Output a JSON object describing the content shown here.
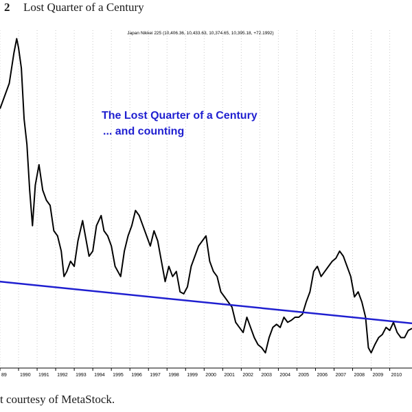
{
  "figure": {
    "number": "2",
    "title": "Lost Quarter of a Century",
    "caption": "t courtesy of MetaStock."
  },
  "chart_data": {
    "type": "line",
    "title": "Japan Nikkei 225 (10,406.36, 10,433.63, 10,374.65, 10,395.18, +72.1992)",
    "annotation": [
      "The Lost Quarter of a Century",
      "... and counting"
    ],
    "annotation_color": "#1f1fd0",
    "line_color": "#000000",
    "trendline_color": "#1f1fd0",
    "xlabel": "",
    "ylabel": "",
    "x_ticks": [
      "89",
      "1990",
      "1991",
      "1992",
      "1993",
      "1994",
      "1995",
      "1996",
      "1997",
      "1998",
      "1999",
      "2000",
      "2001",
      "2002",
      "2003",
      "2004",
      "2005",
      "2006",
      "2007",
      "2008",
      "2009",
      "2010"
    ],
    "xlim": [
      1989.0,
      2011.2
    ],
    "ylim": [
      6500,
      40000
    ],
    "grid": "vertical dotted",
    "series": [
      {
        "x": [
          1989.0,
          1989.2,
          1989.5,
          1989.75,
          1989.9,
          1990.0,
          1990.15,
          1990.3,
          1990.45,
          1990.6,
          1990.75,
          1990.9,
          1991.1,
          1991.3,
          1991.5,
          1991.7,
          1991.9,
          1992.1,
          1992.3,
          1992.45,
          1992.6,
          1992.8,
          1993.0,
          1993.2,
          1993.45,
          1993.6,
          1993.8,
          1994.0,
          1994.2,
          1994.45,
          1994.6,
          1994.8,
          1995.0,
          1995.2,
          1995.5,
          1995.7,
          1995.9,
          1996.1,
          1996.3,
          1996.5,
          1996.7,
          1996.9,
          1997.1,
          1997.3,
          1997.5,
          1997.7,
          1997.9,
          1998.1,
          1998.3,
          1998.5,
          1998.7,
          1998.9,
          1999.1,
          1999.3,
          1999.5,
          1999.7,
          1999.9,
          2000.1,
          2000.3,
          2000.5,
          2000.7,
          2000.9,
          2001.1,
          2001.3,
          2001.5,
          2001.7,
          2001.9,
          2002.1,
          2002.3,
          2002.5,
          2002.7,
          2002.9,
          2003.1,
          2003.3,
          2003.5,
          2003.7,
          2003.9,
          2004.1,
          2004.3,
          2004.5,
          2004.7,
          2004.9,
          2005.1,
          2005.3,
          2005.5,
          2005.7,
          2005.9,
          2006.1,
          2006.3,
          2006.5,
          2006.7,
          2006.9,
          2007.1,
          2007.3,
          2007.5,
          2007.7,
          2007.9,
          2008.1,
          2008.3,
          2008.5,
          2008.7,
          2008.85,
          2009.0,
          2009.2,
          2009.4,
          2009.6,
          2009.8,
          2010.0,
          2010.2,
          2010.4,
          2010.6,
          2010.8,
          2011.0,
          2011.2
        ],
        "y": [
          32000,
          33000,
          34500,
          37500,
          38900,
          38000,
          36000,
          31000,
          28500,
          24000,
          20500,
          24500,
          26500,
          24000,
          23000,
          22500,
          20000,
          19500,
          18000,
          15500,
          16000,
          17000,
          16500,
          19000,
          21000,
          19500,
          17500,
          18000,
          20500,
          21500,
          20000,
          19500,
          18500,
          16500,
          15500,
          18000,
          19500,
          20500,
          22000,
          21500,
          20500,
          19500,
          18500,
          20000,
          19000,
          17000,
          15000,
          16500,
          15500,
          16000,
          14000,
          13800,
          14500,
          16500,
          17500,
          18500,
          19000,
          19500,
          17000,
          16000,
          15500,
          14000,
          13500,
          13000,
          12500,
          11000,
          10500,
          10000,
          11500,
          10500,
          9500,
          8800,
          8500,
          8000,
          9500,
          10500,
          10800,
          10500,
          11500,
          11000,
          11200,
          11500,
          11500,
          11800,
          13000,
          14000,
          16000,
          16500,
          15500,
          16000,
          16500,
          17000,
          17300,
          18000,
          17500,
          16500,
          15500,
          13500,
          14000,
          13000,
          11500,
          8500,
          8000,
          8800,
          9500,
          9800,
          10500,
          10200,
          11000,
          10000,
          9500,
          9500,
          10200,
          10400
        ]
      },
      {
        "name": "",
        "x": [
          1989.0,
          2011.2
        ],
        "y": [
          15000,
          10900
        ]
      }
    ]
  }
}
